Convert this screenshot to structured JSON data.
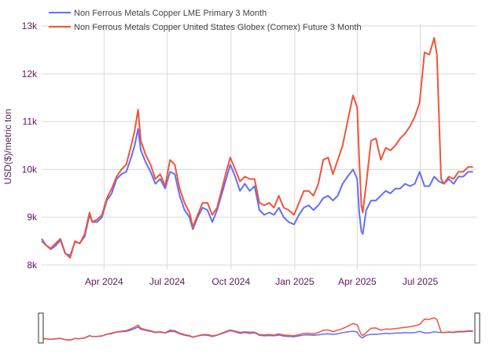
{
  "chart_data": {
    "type": "line",
    "ylabel": "USD($)/metric ton",
    "ylim": [
      7900,
      13050
    ],
    "xlim": [
      "2024-01-02",
      "2025-09-20"
    ],
    "y_ticks": [
      8000,
      9000,
      10000,
      11000,
      12000,
      13000
    ],
    "y_tick_labels": [
      "8k",
      "9k",
      "10k",
      "11k",
      "12k",
      "13k"
    ],
    "x_ticks": [
      "2024-04-01",
      "2024-07-01",
      "2024-10-01",
      "2025-01-01",
      "2025-04-01",
      "2025-07-01"
    ],
    "x_tick_labels": [
      "Apr 2024",
      "Jul 2024",
      "Oct 2024",
      "Jan 2025",
      "Apr 2025",
      "Jul 2025"
    ],
    "grid": true,
    "legend_position": "top-left",
    "range_slider": true,
    "colors": {
      "lme": "#636efa",
      "comex": "#ef553b",
      "axis_text": "#5a1a5a",
      "grid": "#d9d9d9"
    },
    "series": [
      {
        "name": "Non Ferrous Metals Copper LME Primary 3 Month",
        "color": "#636efa",
        "points": [
          [
            "2024-01-02",
            8550
          ],
          [
            "2024-01-08",
            8420
          ],
          [
            "2024-01-15",
            8330
          ],
          [
            "2024-01-22",
            8400
          ],
          [
            "2024-01-29",
            8520
          ],
          [
            "2024-02-05",
            8240
          ],
          [
            "2024-02-12",
            8200
          ],
          [
            "2024-02-19",
            8480
          ],
          [
            "2024-02-26",
            8460
          ],
          [
            "2024-03-04",
            8600
          ],
          [
            "2024-03-11",
            9050
          ],
          [
            "2024-03-15",
            8900
          ],
          [
            "2024-03-22",
            8900
          ],
          [
            "2024-03-29",
            9000
          ],
          [
            "2024-04-05",
            9350
          ],
          [
            "2024-04-12",
            9500
          ],
          [
            "2024-04-19",
            9800
          ],
          [
            "2024-04-26",
            9900
          ],
          [
            "2024-05-03",
            9950
          ],
          [
            "2024-05-10",
            10250
          ],
          [
            "2024-05-15",
            10500
          ],
          [
            "2024-05-20",
            10850
          ],
          [
            "2024-05-24",
            10400
          ],
          [
            "2024-05-31",
            10150
          ],
          [
            "2024-06-07",
            9950
          ],
          [
            "2024-06-14",
            9700
          ],
          [
            "2024-06-21",
            9800
          ],
          [
            "2024-06-28",
            9600
          ],
          [
            "2024-07-05",
            9950
          ],
          [
            "2024-07-12",
            9900
          ],
          [
            "2024-07-19",
            9450
          ],
          [
            "2024-07-26",
            9150
          ],
          [
            "2024-08-02",
            9000
          ],
          [
            "2024-08-07",
            8750
          ],
          [
            "2024-08-14",
            9000
          ],
          [
            "2024-08-21",
            9200
          ],
          [
            "2024-08-28",
            9150
          ],
          [
            "2024-09-04",
            8900
          ],
          [
            "2024-09-11",
            9150
          ],
          [
            "2024-09-18",
            9500
          ],
          [
            "2024-09-25",
            9850
          ],
          [
            "2024-09-30",
            10100
          ],
          [
            "2024-10-07",
            9850
          ],
          [
            "2024-10-14",
            9550
          ],
          [
            "2024-10-21",
            9700
          ],
          [
            "2024-10-28",
            9550
          ],
          [
            "2024-11-04",
            9650
          ],
          [
            "2024-11-11",
            9150
          ],
          [
            "2024-11-18",
            9050
          ],
          [
            "2024-11-25",
            9100
          ],
          [
            "2024-12-02",
            9050
          ],
          [
            "2024-12-09",
            9200
          ],
          [
            "2024-12-16",
            9000
          ],
          [
            "2024-12-23",
            8900
          ],
          [
            "2024-12-31",
            8850
          ],
          [
            "2025-01-07",
            9050
          ],
          [
            "2025-01-14",
            9200
          ],
          [
            "2025-01-21",
            9250
          ],
          [
            "2025-01-28",
            9150
          ],
          [
            "2025-02-04",
            9250
          ],
          [
            "2025-02-11",
            9400
          ],
          [
            "2025-02-18",
            9450
          ],
          [
            "2025-02-25",
            9350
          ],
          [
            "2025-03-04",
            9450
          ],
          [
            "2025-03-11",
            9700
          ],
          [
            "2025-03-18",
            9850
          ],
          [
            "2025-03-26",
            10000
          ],
          [
            "2025-04-01",
            9800
          ],
          [
            "2025-04-04",
            9100
          ],
          [
            "2025-04-07",
            8700
          ],
          [
            "2025-04-09",
            8650
          ],
          [
            "2025-04-14",
            9150
          ],
          [
            "2025-04-21",
            9350
          ],
          [
            "2025-04-28",
            9350
          ],
          [
            "2025-05-05",
            9450
          ],
          [
            "2025-05-12",
            9550
          ],
          [
            "2025-05-19",
            9500
          ],
          [
            "2025-05-26",
            9600
          ],
          [
            "2025-06-02",
            9600
          ],
          [
            "2025-06-09",
            9700
          ],
          [
            "2025-06-16",
            9650
          ],
          [
            "2025-06-23",
            9700
          ],
          [
            "2025-06-30",
            9950
          ],
          [
            "2025-07-07",
            9650
          ],
          [
            "2025-07-14",
            9650
          ],
          [
            "2025-07-21",
            9850
          ],
          [
            "2025-07-28",
            9750
          ],
          [
            "2025-08-04",
            9700
          ],
          [
            "2025-08-11",
            9800
          ],
          [
            "2025-08-18",
            9700
          ],
          [
            "2025-08-25",
            9850
          ],
          [
            "2025-09-01",
            9850
          ],
          [
            "2025-09-08",
            9950
          ],
          [
            "2025-09-15",
            9950
          ]
        ]
      },
      {
        "name": "Non Ferrous Metals Copper United States Globex (Comex) Future 3 Month",
        "color": "#ef553b",
        "points": [
          [
            "2024-01-02",
            8500
          ],
          [
            "2024-01-08",
            8420
          ],
          [
            "2024-01-15",
            8350
          ],
          [
            "2024-01-22",
            8450
          ],
          [
            "2024-01-29",
            8550
          ],
          [
            "2024-02-05",
            8250
          ],
          [
            "2024-02-12",
            8150
          ],
          [
            "2024-02-19",
            8500
          ],
          [
            "2024-02-26",
            8450
          ],
          [
            "2024-03-04",
            8650
          ],
          [
            "2024-03-11",
            9100
          ],
          [
            "2024-03-15",
            8900
          ],
          [
            "2024-03-22",
            8950
          ],
          [
            "2024-03-29",
            9050
          ],
          [
            "2024-04-05",
            9400
          ],
          [
            "2024-04-12",
            9600
          ],
          [
            "2024-04-19",
            9850
          ],
          [
            "2024-04-26",
            10000
          ],
          [
            "2024-05-03",
            10100
          ],
          [
            "2024-05-10",
            10500
          ],
          [
            "2024-05-15",
            10800
          ],
          [
            "2024-05-20",
            11250
          ],
          [
            "2024-05-24",
            10600
          ],
          [
            "2024-05-31",
            10300
          ],
          [
            "2024-06-07",
            10100
          ],
          [
            "2024-06-14",
            9800
          ],
          [
            "2024-06-21",
            9900
          ],
          [
            "2024-06-28",
            9650
          ],
          [
            "2024-07-05",
            10200
          ],
          [
            "2024-07-12",
            10100
          ],
          [
            "2024-07-19",
            9600
          ],
          [
            "2024-07-26",
            9300
          ],
          [
            "2024-08-02",
            9100
          ],
          [
            "2024-08-07",
            8800
          ],
          [
            "2024-08-14",
            9050
          ],
          [
            "2024-08-21",
            9300
          ],
          [
            "2024-08-28",
            9300
          ],
          [
            "2024-09-04",
            9050
          ],
          [
            "2024-09-11",
            9200
          ],
          [
            "2024-09-18",
            9600
          ],
          [
            "2024-09-25",
            10000
          ],
          [
            "2024-09-30",
            10250
          ],
          [
            "2024-10-07",
            10000
          ],
          [
            "2024-10-14",
            9750
          ],
          [
            "2024-10-21",
            9850
          ],
          [
            "2024-10-28",
            9800
          ],
          [
            "2024-11-04",
            9800
          ],
          [
            "2024-11-11",
            9300
          ],
          [
            "2024-11-18",
            9250
          ],
          [
            "2024-11-25",
            9300
          ],
          [
            "2024-12-02",
            9200
          ],
          [
            "2024-12-09",
            9450
          ],
          [
            "2024-12-16",
            9200
          ],
          [
            "2024-12-23",
            9150
          ],
          [
            "2024-12-31",
            9050
          ],
          [
            "2025-01-07",
            9300
          ],
          [
            "2025-01-14",
            9550
          ],
          [
            "2025-01-21",
            9550
          ],
          [
            "2025-01-28",
            9450
          ],
          [
            "2025-02-04",
            9700
          ],
          [
            "2025-02-11",
            10200
          ],
          [
            "2025-02-18",
            10250
          ],
          [
            "2025-02-25",
            9900
          ],
          [
            "2025-03-04",
            10200
          ],
          [
            "2025-03-11",
            10500
          ],
          [
            "2025-03-18",
            11000
          ],
          [
            "2025-03-26",
            11550
          ],
          [
            "2025-04-01",
            11300
          ],
          [
            "2025-04-04",
            10200
          ],
          [
            "2025-04-07",
            9250
          ],
          [
            "2025-04-09",
            9100
          ],
          [
            "2025-04-14",
            9700
          ],
          [
            "2025-04-21",
            10600
          ],
          [
            "2025-04-28",
            10650
          ],
          [
            "2025-05-05",
            10200
          ],
          [
            "2025-05-12",
            10450
          ],
          [
            "2025-05-19",
            10400
          ],
          [
            "2025-05-26",
            10500
          ],
          [
            "2025-06-02",
            10650
          ],
          [
            "2025-06-09",
            10750
          ],
          [
            "2025-06-16",
            10900
          ],
          [
            "2025-06-23",
            11100
          ],
          [
            "2025-06-30",
            11400
          ],
          [
            "2025-07-07",
            12450
          ],
          [
            "2025-07-14",
            12400
          ],
          [
            "2025-07-21",
            12750
          ],
          [
            "2025-07-25",
            12400
          ],
          [
            "2025-07-31",
            9800
          ],
          [
            "2025-08-04",
            9700
          ],
          [
            "2025-08-11",
            9850
          ],
          [
            "2025-08-18",
            9800
          ],
          [
            "2025-08-25",
            9950
          ],
          [
            "2025-09-01",
            9950
          ],
          [
            "2025-09-08",
            10050
          ],
          [
            "2025-09-15",
            10050
          ]
        ]
      }
    ]
  }
}
